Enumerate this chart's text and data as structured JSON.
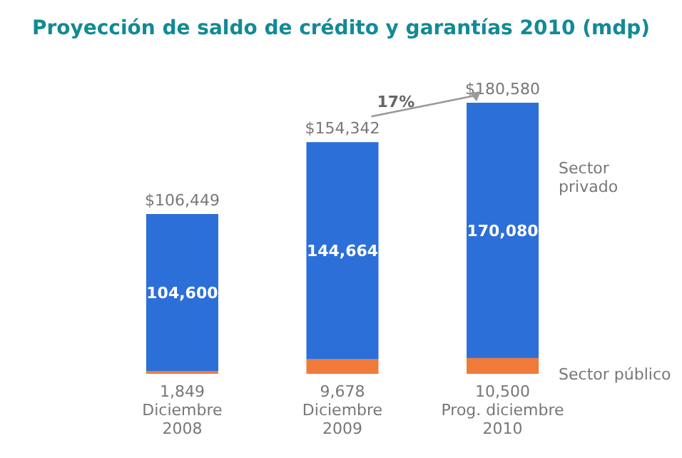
{
  "chart_data": {
    "type": "bar",
    "title": "Proyección de saldo de crédito y garantías 2010 (mdp)",
    "categories": [
      "Diciembre 2008",
      "Diciembre 2009",
      "Prog. diciembre 2010"
    ],
    "stacked": true,
    "series": [
      {
        "name": "Sector público",
        "color": "#f07a3a",
        "values": [
          1849,
          9678,
          10500
        ],
        "value_labels": [
          "1,849",
          "9,678",
          "10,500"
        ]
      },
      {
        "name": "Sector privado",
        "color": "#2d6fd8",
        "values": [
          104600,
          144664,
          170080
        ],
        "value_labels": [
          "104,600",
          "144,664",
          "170,080"
        ]
      }
    ],
    "totals": [
      "$106,449",
      "$154,342",
      "$180,580"
    ],
    "annotations": [
      "17%"
    ]
  }
}
